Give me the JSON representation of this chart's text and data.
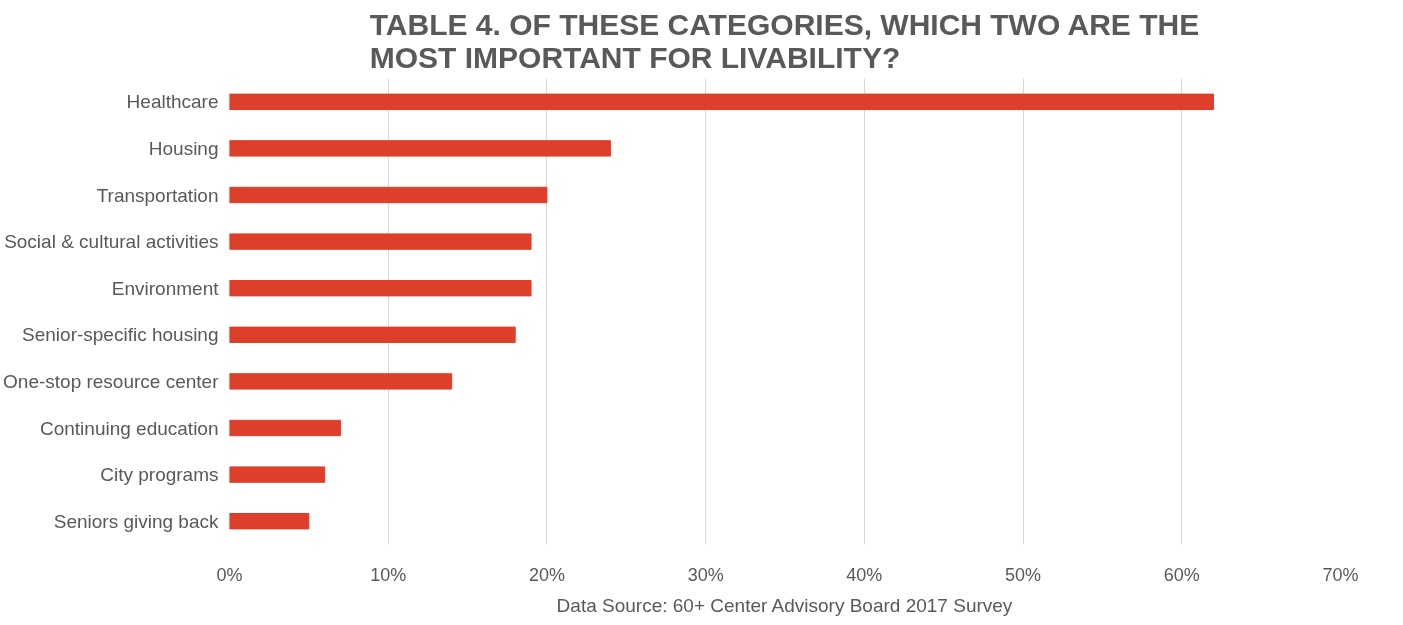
{
  "chart_data": {
    "type": "bar",
    "orientation": "horizontal",
    "title": "TABLE 4. OF THESE CATEGORIES, WHICH TWO ARE THE MOST IMPORTANT FOR LIVABILITY?",
    "categories": [
      "Healthcare",
      "Housing",
      "Transportation",
      "Social & cultural activities",
      "Environment",
      "Senior-specific housing",
      "One-stop resource center",
      "Continuing education",
      "City programs",
      "Seniors giving back"
    ],
    "values": [
      62,
      24,
      20,
      19,
      19,
      18,
      14,
      7,
      6,
      5
    ],
    "color": "#de3f2a",
    "xlim": [
      0,
      70
    ],
    "xticks": [
      {
        "value": 0,
        "label": "0%"
      },
      {
        "value": 10,
        "label": "10%"
      },
      {
        "value": 20,
        "label": "20%"
      },
      {
        "value": 30,
        "label": "30%"
      },
      {
        "value": 40,
        "label": "40%"
      },
      {
        "value": 50,
        "label": "50%"
      },
      {
        "value": 60,
        "label": "60%"
      },
      {
        "value": 70,
        "label": "70%"
      }
    ],
    "grid": "x",
    "annotations": [
      "Data Source: 60+ Center Advisory Board 2017 Survey"
    ]
  }
}
